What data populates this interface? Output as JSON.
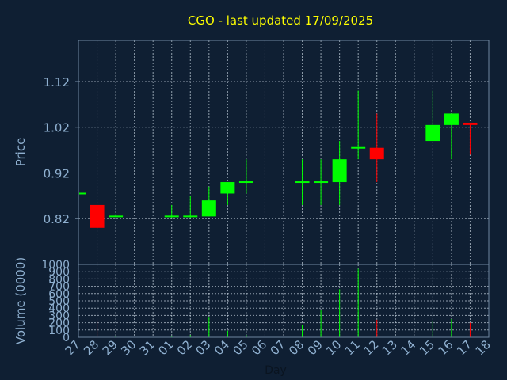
{
  "chart_data": {
    "type": "candlestick",
    "title": "CGO - last updated 17/09/2025",
    "xlabel": "Day",
    "ylabel_price": "Price",
    "ylabel_volume": "Volume (0000)",
    "x_ticks": [
      "27",
      "28",
      "29",
      "30",
      "31",
      "01",
      "02",
      "03",
      "04",
      "05",
      "06",
      "07",
      "08",
      "09",
      "10",
      "11",
      "12",
      "13",
      "14",
      "15",
      "16",
      "17",
      "18"
    ],
    "price_ticks": [
      "0.82",
      "0.92",
      "1.02",
      "1.12"
    ],
    "volume_ticks": [
      "0",
      "100",
      "200",
      "300",
      "400",
      "500",
      "600",
      "700",
      "800",
      "900",
      "1000"
    ],
    "price_ylim": [
      0.72,
      1.21
    ],
    "volume_ylim": [
      0,
      1000
    ],
    "grid": true,
    "colors": {
      "up": "#00ff00",
      "down": "#ff0000",
      "title": "#ffff00",
      "axis_text": "#8fb0d0",
      "background": "#0f1f33"
    },
    "candles": [
      {
        "day": "27",
        "open": 0.875,
        "high": 0.875,
        "low": 0.875,
        "close": 0.875,
        "volume": 0
      },
      {
        "day": "28",
        "open": 0.85,
        "high": 0.85,
        "low": 0.8,
        "close": 0.8,
        "volume": 220
      },
      {
        "day": "29",
        "open": 0.825,
        "high": 0.83,
        "low": 0.825,
        "close": 0.825,
        "volume": 10
      },
      {
        "day": "01",
        "open": 0.825,
        "high": 0.85,
        "low": 0.82,
        "close": 0.825,
        "volume": 20
      },
      {
        "day": "02",
        "open": 0.825,
        "high": 0.87,
        "low": 0.82,
        "close": 0.825,
        "volume": 30
      },
      {
        "day": "03",
        "open": 0.825,
        "high": 0.89,
        "low": 0.825,
        "close": 0.86,
        "volume": 270
      },
      {
        "day": "04",
        "open": 0.875,
        "high": 0.9,
        "low": 0.85,
        "close": 0.9,
        "volume": 90
      },
      {
        "day": "05",
        "open": 0.9,
        "high": 0.95,
        "low": 0.875,
        "close": 0.9,
        "volume": 30
      },
      {
        "day": "08",
        "open": 0.9,
        "high": 0.95,
        "low": 0.85,
        "close": 0.9,
        "volume": 170
      },
      {
        "day": "09",
        "open": 0.9,
        "high": 0.95,
        "low": 0.85,
        "close": 0.9,
        "volume": 380
      },
      {
        "day": "10",
        "open": 0.9,
        "high": 0.99,
        "low": 0.85,
        "close": 0.95,
        "volume": 660
      },
      {
        "day": "11",
        "open": 0.975,
        "high": 1.1,
        "low": 0.95,
        "close": 0.975,
        "volume": 940
      },
      {
        "day": "12",
        "open": 0.975,
        "high": 1.05,
        "low": 0.9,
        "close": 0.95,
        "volume": 240
      },
      {
        "day": "15",
        "open": 0.99,
        "high": 1.1,
        "low": 0.99,
        "close": 1.025,
        "volume": 230
      },
      {
        "day": "16",
        "open": 1.025,
        "high": 1.05,
        "low": 0.95,
        "close": 1.05,
        "volume": 250
      },
      {
        "day": "17",
        "open": 1.03,
        "high": 1.03,
        "low": 0.96,
        "close": 1.025,
        "volume": 200
      }
    ]
  }
}
